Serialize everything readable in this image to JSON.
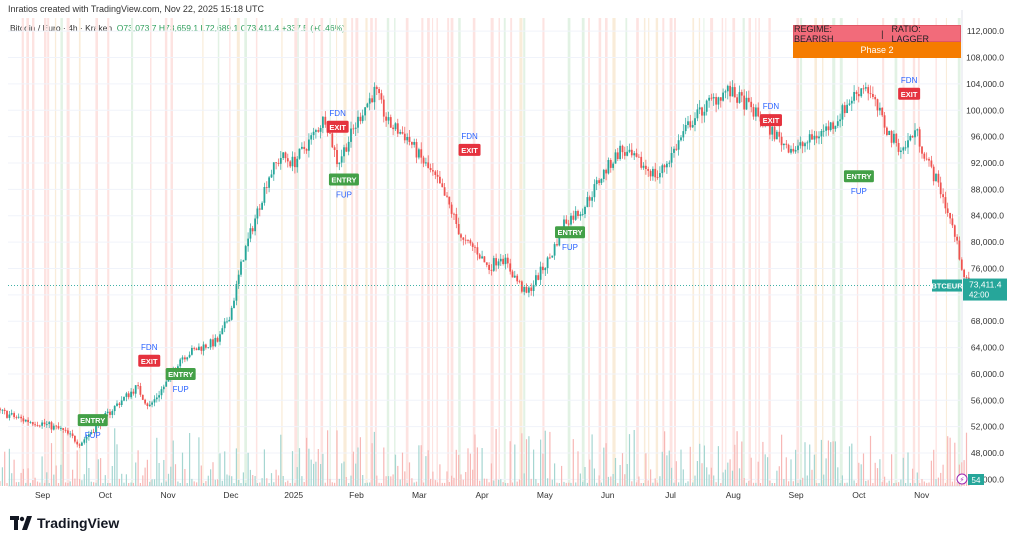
{
  "header": {
    "credit": "Inratios created with TradingView.com, Nov 22, 2025 15:18 UTC",
    "symbol": "Bitcoin / Euro · 4h · Kraken",
    "ohlc": {
      "open": "O73,073.7",
      "high": "H73,659.1",
      "low": "L72,689.1",
      "close": "C73,411.4",
      "change": "+337.5 (+0.46%)"
    }
  },
  "regime": {
    "regime_label": "REGIME: BEARISH",
    "separator": "|",
    "ratio_label": "RATIO: LAGGER",
    "phase_label": "Phase 2"
  },
  "price_tag": {
    "symbol": "BTCEUR",
    "price": "73,411.4",
    "countdown": "42:00"
  },
  "volume_badge": "54",
  "footer": {
    "brand": "TradingView"
  },
  "colors": {
    "up": "#26a69a",
    "down": "#ef5350",
    "entry": "#43a047",
    "exit": "#e5323e",
    "label_blue": "#2962ff",
    "phase": "#f57c00"
  },
  "chart_data": {
    "type": "candlestick",
    "title": "Bitcoin / Euro · 4h · Kraken",
    "ylim": [
      43000,
      114000
    ],
    "y_ticks": [
      44000,
      48000,
      52000,
      56000,
      60000,
      64000,
      68000,
      72000,
      76000,
      80000,
      84000,
      88000,
      92000,
      96000,
      100000,
      104000,
      108000,
      112000
    ],
    "y_tick_labels": [
      "44,000.0",
      "48,000.0",
      "52,000.0",
      "56,000.0",
      "60,000.0",
      "64,000.0",
      "68,000.0",
      "72,000.0",
      "76,000.0",
      "80,000.0",
      "84,000.0",
      "88,000.0",
      "92,000.0",
      "96,000.0",
      "100,000.0",
      "104,000.0",
      "108,000.0",
      "112,000.0"
    ],
    "x_axis_labels": [
      "Sep",
      "Oct",
      "Nov",
      "Dec",
      "2025",
      "Feb",
      "Mar",
      "Apr",
      "May",
      "Jun",
      "Jul",
      "Aug",
      "Sep",
      "Oct",
      "Nov"
    ],
    "x_axis_months": [
      1,
      2,
      3,
      4,
      5,
      6,
      7,
      8,
      9,
      10,
      11,
      12,
      13,
      14,
      15
    ],
    "x_range_months": [
      0.1,
      15.75
    ],
    "price_path": [
      [
        0.1,
        55000
      ],
      [
        0.4,
        54000
      ],
      [
        0.7,
        53000
      ],
      [
        1.0,
        52500
      ],
      [
        1.3,
        51500
      ],
      [
        1.6,
        49500
      ],
      [
        1.9,
        52500
      ],
      [
        2.2,
        55500
      ],
      [
        2.5,
        58000
      ],
      [
        2.7,
        55000
      ],
      [
        3.0,
        59000
      ],
      [
        3.2,
        62500
      ],
      [
        3.5,
        64000
      ],
      [
        3.8,
        65000
      ],
      [
        4.0,
        69500
      ],
      [
        4.2,
        78000
      ],
      [
        4.4,
        84000
      ],
      [
        4.6,
        90000
      ],
      [
        4.8,
        93000
      ],
      [
        5.0,
        92000
      ],
      [
        5.3,
        96000
      ],
      [
        5.5,
        99000
      ],
      [
        5.7,
        92000
      ],
      [
        5.9,
        96000
      ],
      [
        6.1,
        100000
      ],
      [
        6.3,
        103000
      ],
      [
        6.5,
        98000
      ],
      [
        6.8,
        96000
      ],
      [
        7.0,
        93000
      ],
      [
        7.3,
        89000
      ],
      [
        7.5,
        85000
      ],
      [
        7.7,
        80000
      ],
      [
        7.9,
        79000
      ],
      [
        8.1,
        76000
      ],
      [
        8.3,
        78000
      ],
      [
        8.5,
        75000
      ],
      [
        8.7,
        72000
      ],
      [
        8.9,
        75000
      ],
      [
        9.1,
        78000
      ],
      [
        9.3,
        83000
      ],
      [
        9.6,
        85000
      ],
      [
        9.9,
        90000
      ],
      [
        10.2,
        94000
      ],
      [
        10.5,
        92000
      ],
      [
        10.8,
        90000
      ],
      [
        11.0,
        93000
      ],
      [
        11.3,
        98000
      ],
      [
        11.6,
        101000
      ],
      [
        11.9,
        103000
      ],
      [
        12.2,
        101000
      ],
      [
        12.5,
        98000
      ],
      [
        12.8,
        95000
      ],
      [
        13.0,
        94000
      ],
      [
        13.3,
        96000
      ],
      [
        13.6,
        98000
      ],
      [
        13.9,
        102000
      ],
      [
        14.1,
        104000
      ],
      [
        14.3,
        100000
      ],
      [
        14.5,
        96000
      ],
      [
        14.7,
        94000
      ],
      [
        14.9,
        97000
      ],
      [
        15.1,
        92000
      ],
      [
        15.3,
        88000
      ],
      [
        15.5,
        82000
      ],
      [
        15.7,
        74000
      ],
      [
        15.75,
        73411.4
      ]
    ],
    "last_price": 73411.4,
    "signals": [
      {
        "type": "entry",
        "label": "ENTRY",
        "sub": "FUP",
        "x": 1.8,
        "y": 53000
      },
      {
        "type": "exit",
        "label": "EXIT",
        "sub": "FDN",
        "x": 2.7,
        "y": 62000
      },
      {
        "type": "entry",
        "label": "ENTRY",
        "sub": "FUP",
        "x": 3.2,
        "y": 60000
      },
      {
        "type": "exit",
        "label": "EXIT",
        "sub": "FDN",
        "x": 5.7,
        "y": 97500
      },
      {
        "type": "entry",
        "label": "ENTRY",
        "sub": "FUP",
        "x": 5.8,
        "y": 89500
      },
      {
        "type": "exit",
        "label": "EXIT",
        "sub": "FDN",
        "x": 7.8,
        "y": 94000
      },
      {
        "type": "entry",
        "label": "ENTRY",
        "sub": "FUP",
        "x": 9.4,
        "y": 81500
      },
      {
        "type": "exit",
        "label": "EXIT",
        "sub": "FDN",
        "x": 12.6,
        "y": 98500
      },
      {
        "type": "entry",
        "label": "ENTRY",
        "sub": "FUP",
        "x": 14.0,
        "y": 90000
      },
      {
        "type": "exit",
        "label": "EXIT",
        "sub": "FDN",
        "x": 14.8,
        "y": 102500
      }
    ]
  }
}
